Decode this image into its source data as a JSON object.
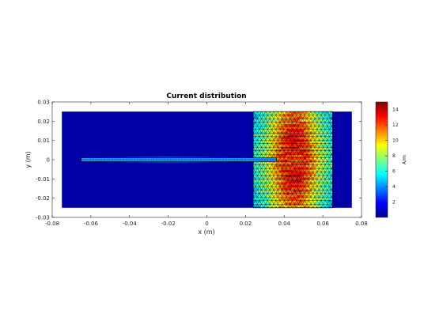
{
  "chart_data": {
    "type": "heatmap",
    "title": "Current distribution",
    "xlabel": "x (m)",
    "ylabel": "y (m)",
    "xlim": [
      -0.08,
      0.08
    ],
    "ylim": [
      -0.03,
      0.03
    ],
    "x_ticks": [
      -0.08,
      -0.06,
      -0.04,
      -0.02,
      0,
      0.02,
      0.04,
      0.06,
      0.08
    ],
    "x_tick_labels": [
      "-0.08",
      "-0.06",
      "-0.04",
      "-0.02",
      "0",
      "0.02",
      "0.04",
      "0.06",
      "0.08"
    ],
    "y_ticks": [
      -0.03,
      -0.02,
      -0.01,
      0,
      0.01,
      0.02,
      0.03
    ],
    "y_tick_labels": [
      "-0.03",
      "-0.02",
      "-0.01",
      "0",
      "0.01",
      "0.02",
      "0.03"
    ],
    "colormap": "jet",
    "colorbar": {
      "label": "A/m",
      "range": [
        0,
        15
      ],
      "ticks": [
        2,
        4,
        6,
        8,
        10,
        12,
        14
      ],
      "tick_labels": [
        "2",
        "4",
        "6",
        "8",
        "10",
        "12",
        "14"
      ]
    },
    "substrate": {
      "x_range": [
        -0.075,
        0.075
      ],
      "y_range": [
        -0.025,
        0.025
      ]
    },
    "patch": {
      "x_range": [
        0.024,
        0.065
      ],
      "y_range": [
        -0.025,
        0.025
      ],
      "peak_x": 0.045,
      "peak_value": 14
    },
    "feedline": {
      "x_range": [
        -0.065,
        0.036
      ],
      "y": 0,
      "half_width": 0.001
    },
    "feed_glow": {
      "x_range": [
        -0.065,
        0.024
      ],
      "peak_value": 4.5
    }
  }
}
